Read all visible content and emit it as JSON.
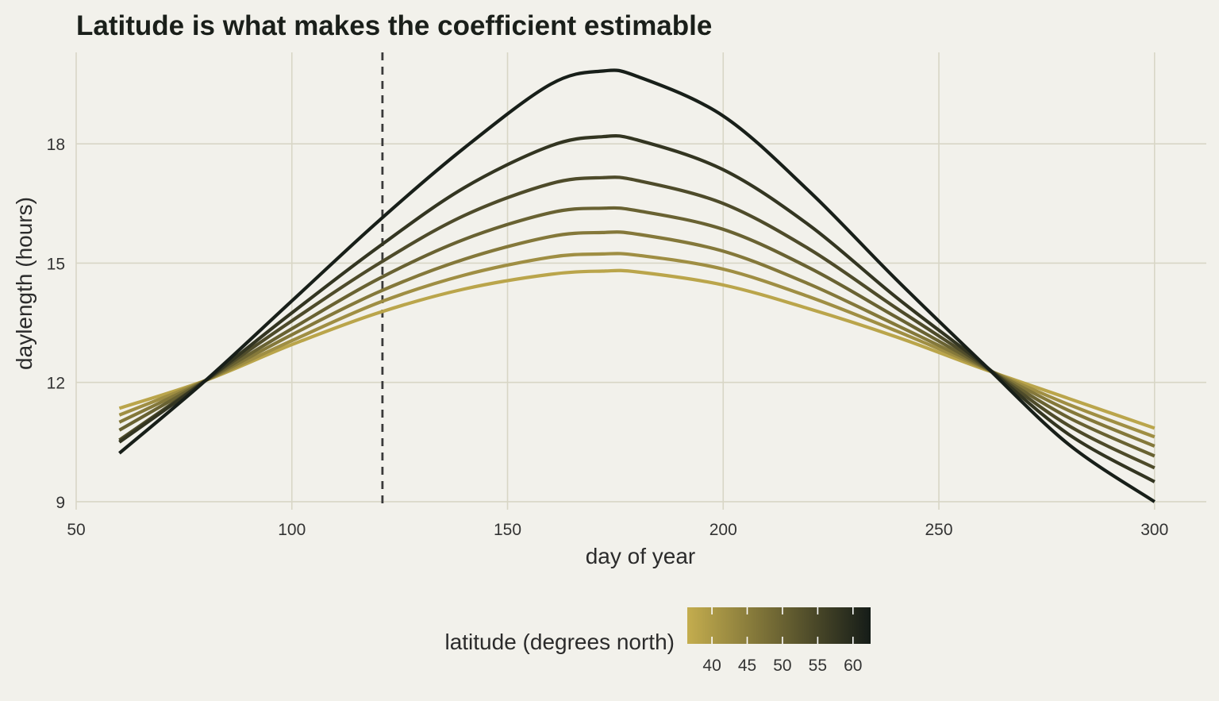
{
  "chart_data": {
    "type": "line",
    "title": "Latitude is what makes the coefficient estimable",
    "xlabel": "day of year",
    "ylabel": "daylength (hours)",
    "xlim": [
      50,
      312
    ],
    "ylim": [
      8.8,
      20.3
    ],
    "x_ticks": [
      50,
      100,
      150,
      200,
      250,
      300
    ],
    "y_ticks": [
      9,
      12,
      15,
      18
    ],
    "x_tick_labels": [
      "50",
      "100",
      "150",
      "200",
      "250",
      "300"
    ],
    "y_tick_labels": [
      "9",
      "12",
      "15",
      "18"
    ],
    "grid": true,
    "reference_line": {
      "x": 121,
      "style": "dashed"
    },
    "colors": {
      "low": "#c4ad4e",
      "high": "#151c18",
      "background": "#f2f1eb",
      "grid": "#d8d6c6",
      "reference": "#3a3a3a"
    },
    "x": [
      60,
      80,
      100,
      120,
      140,
      160,
      172,
      180,
      200,
      220,
      240,
      260,
      280,
      300
    ],
    "series": [
      {
        "latitude": 38,
        "values": [
          11.35,
          12.05,
          12.95,
          13.75,
          14.35,
          14.72,
          14.8,
          14.78,
          14.45,
          13.85,
          13.15,
          12.35,
          11.6,
          10.85
        ]
      },
      {
        "latitude": 42,
        "values": [
          11.18,
          12.05,
          13.05,
          14.0,
          14.7,
          15.15,
          15.23,
          15.2,
          14.85,
          14.15,
          13.3,
          12.38,
          11.45,
          10.63
        ]
      },
      {
        "latitude": 46,
        "values": [
          11.0,
          12.05,
          13.2,
          14.27,
          15.1,
          15.67,
          15.77,
          15.73,
          15.3,
          14.47,
          13.45,
          12.4,
          11.3,
          10.4
        ]
      },
      {
        "latitude": 50,
        "values": [
          10.8,
          12.05,
          13.35,
          14.6,
          15.6,
          16.27,
          16.38,
          16.32,
          15.85,
          14.88,
          13.65,
          12.42,
          11.12,
          10.15
        ]
      },
      {
        "latitude": 54,
        "values": [
          10.55,
          12.05,
          13.55,
          14.98,
          16.2,
          17.0,
          17.15,
          17.08,
          16.5,
          15.35,
          13.88,
          12.45,
          10.92,
          9.85
        ]
      },
      {
        "latitude": 58,
        "values": [
          10.5,
          12.05,
          13.75,
          15.4,
          16.9,
          17.95,
          18.18,
          18.1,
          17.35,
          15.95,
          14.15,
          12.48,
          10.7,
          9.5
        ]
      },
      {
        "latitude": 62,
        "values": [
          10.22,
          12.05,
          14.05,
          16.05,
          17.9,
          19.5,
          19.83,
          19.7,
          18.7,
          16.8,
          14.6,
          12.5,
          10.45,
          9.0
        ]
      }
    ],
    "legend": {
      "title": "latitude (degrees north)",
      "placement": "bottom",
      "type": "colorbar",
      "range": [
        36.5,
        62.5
      ],
      "ticks": [
        40,
        45,
        50,
        55,
        60
      ],
      "tick_labels": [
        "40",
        "45",
        "50",
        "55",
        "60"
      ]
    }
  }
}
